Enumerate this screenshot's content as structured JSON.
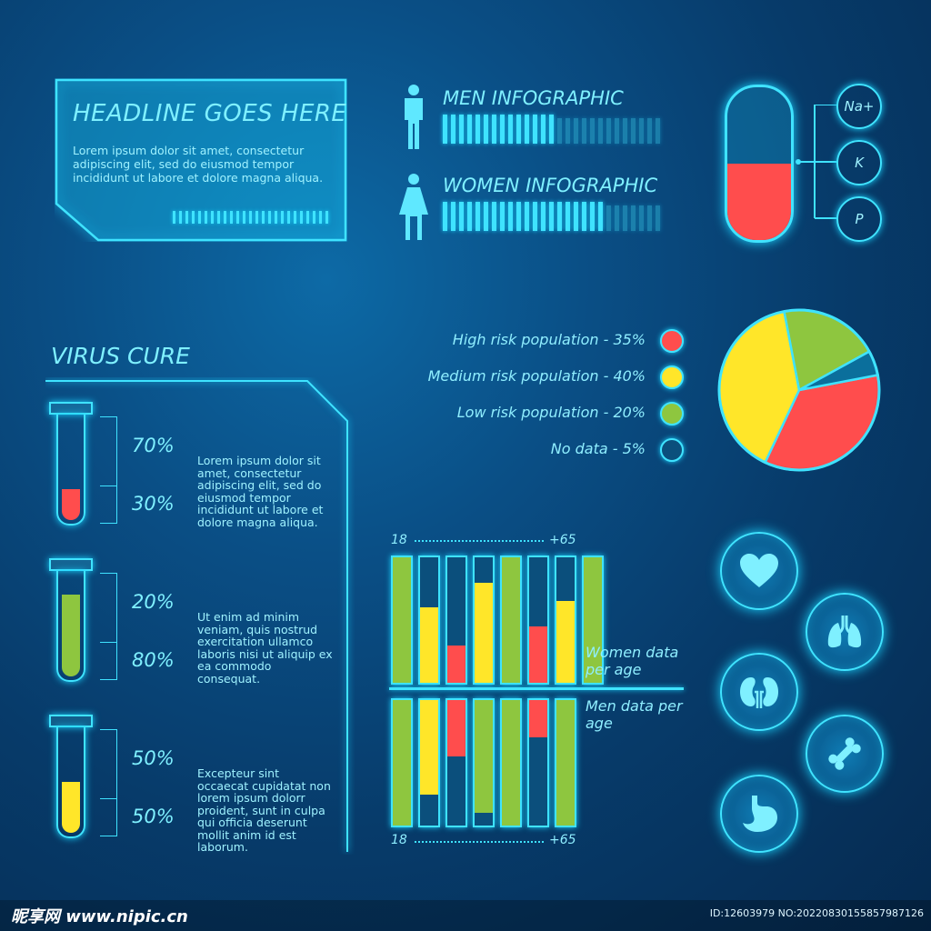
{
  "headline": {
    "title": "HEADLINE GOES HERE",
    "body": "Lorem ipsum dolor sit amet, consectetur adipiscing elit, sed do eiusmod tempor incididunt ut labore et dolore magna aliqua."
  },
  "gender": {
    "men_title": "MEN INFOGRAPHIC",
    "men_fill": 0.5,
    "women_title": "WOMEN INFOGRAPHIC",
    "women_fill": 0.75
  },
  "pill": {
    "fill": 0.5,
    "labels": [
      "Na+",
      "K",
      "P"
    ]
  },
  "legend": [
    {
      "text": "High risk population - 35%",
      "color": "#ff4d4d"
    },
    {
      "text": "Medium risk population - 40%",
      "color": "#ffe629"
    },
    {
      "text": "Low risk population - 20%",
      "color": "#8ec63f"
    },
    {
      "text": "No data - 5%",
      "color": "#0b4f7c"
    }
  ],
  "pie_data": {
    "type": "pie",
    "slices": [
      {
        "value": 35,
        "color": "#ff4d4d"
      },
      {
        "value": 40,
        "color": "#ffe629"
      },
      {
        "value": 20,
        "color": "#8ec63f"
      },
      {
        "value": 5,
        "color": "#0b6f9c"
      }
    ]
  },
  "virus": {
    "title": "VIRUS CURE",
    "tubes": [
      {
        "top": "70%",
        "bottom": "30%",
        "fill": 0.3,
        "color": "#ff4d4d",
        "text": "Lorem ipsum dolor sit amet, consectetur adipiscing elit, sed do eiusmod tempor incididunt ut labore et dolore magna aliqua."
      },
      {
        "top": "20%",
        "bottom": "80%",
        "fill": 0.8,
        "color": "#8ec63f",
        "text": "Ut enim ad minim veniam, quis nostrud exercitation ullamco laboris nisi ut aliquip ex ea commodo consequat."
      },
      {
        "top": "50%",
        "bottom": "50%",
        "fill": 0.5,
        "color": "#ffe629",
        "text": "Excepteur sint occaecat cupidatat non lorem ipsum dolorr proident, sunt in culpa qui officia deserunt mollit anim id est laborum."
      }
    ]
  },
  "chart_data": {
    "type": "bar",
    "x_start": "18",
    "x_end": "+65",
    "women_label": "Women data per age",
    "men_label": "Men data per age",
    "women": [
      {
        "value": 1.0,
        "color": "#8ec63f"
      },
      {
        "value": 0.6,
        "color": "#ffe629"
      },
      {
        "value": 0.3,
        "color": "#ff4d4d"
      },
      {
        "value": 0.8,
        "color": "#ffe629"
      },
      {
        "value": 1.0,
        "color": "#8ec63f"
      },
      {
        "value": 0.45,
        "color": "#ff4d4d"
      },
      {
        "value": 0.65,
        "color": "#ffe629"
      },
      {
        "value": 1.0,
        "color": "#8ec63f"
      }
    ],
    "men": [
      {
        "value": 1.0,
        "color": "#8ec63f"
      },
      {
        "value": 0.75,
        "color": "#ffe629"
      },
      {
        "value": 0.45,
        "color": "#ff4d4d"
      },
      {
        "value": 0.9,
        "color": "#8ec63f"
      },
      {
        "value": 1.0,
        "color": "#8ec63f"
      },
      {
        "value": 0.3,
        "color": "#ff4d4d"
      },
      {
        "value": 1.0,
        "color": "#8ec63f"
      }
    ]
  },
  "organs": [
    "heart-icon",
    "lungs-icon",
    "kidneys-icon",
    "bone-icon",
    "stomach-icon"
  ],
  "watermark": {
    "site": "昵享网 www.nipic.cn",
    "id": "ID:12603979 NO:20220830155857987126"
  }
}
